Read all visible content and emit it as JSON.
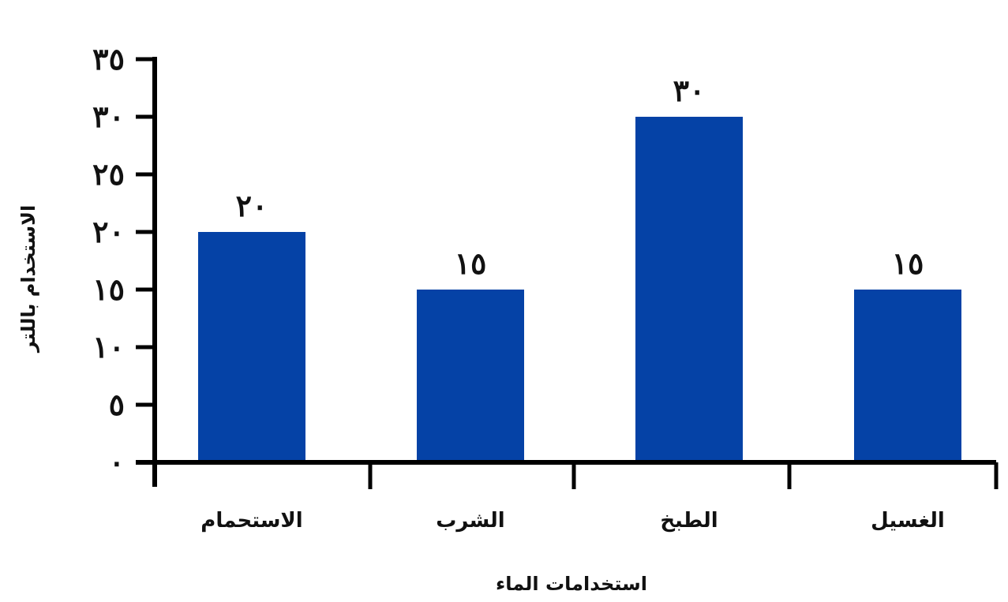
{
  "chart_data": {
    "type": "bar",
    "title": "",
    "xlabel": "استخدامات الماء",
    "ylabel": "الاستخدام باللتر",
    "categories": [
      "الاستحمام",
      "الشرب",
      "الطبخ",
      "الغسيل"
    ],
    "values": [
      20,
      15,
      30,
      15
    ],
    "data_labels": [
      "٢٠",
      "١٥",
      "٣٠",
      "١٥"
    ],
    "ylim": [
      0,
      35
    ],
    "yticks": [
      0,
      5,
      10,
      15,
      20,
      25,
      30,
      35
    ],
    "ytick_labels": [
      "٠",
      "٥",
      "١٠",
      "١٥",
      "٢٠",
      "٢٥",
      "٣٠",
      "٣٥"
    ],
    "bar_color": "#0542A6",
    "grid": false,
    "legend": "none"
  }
}
